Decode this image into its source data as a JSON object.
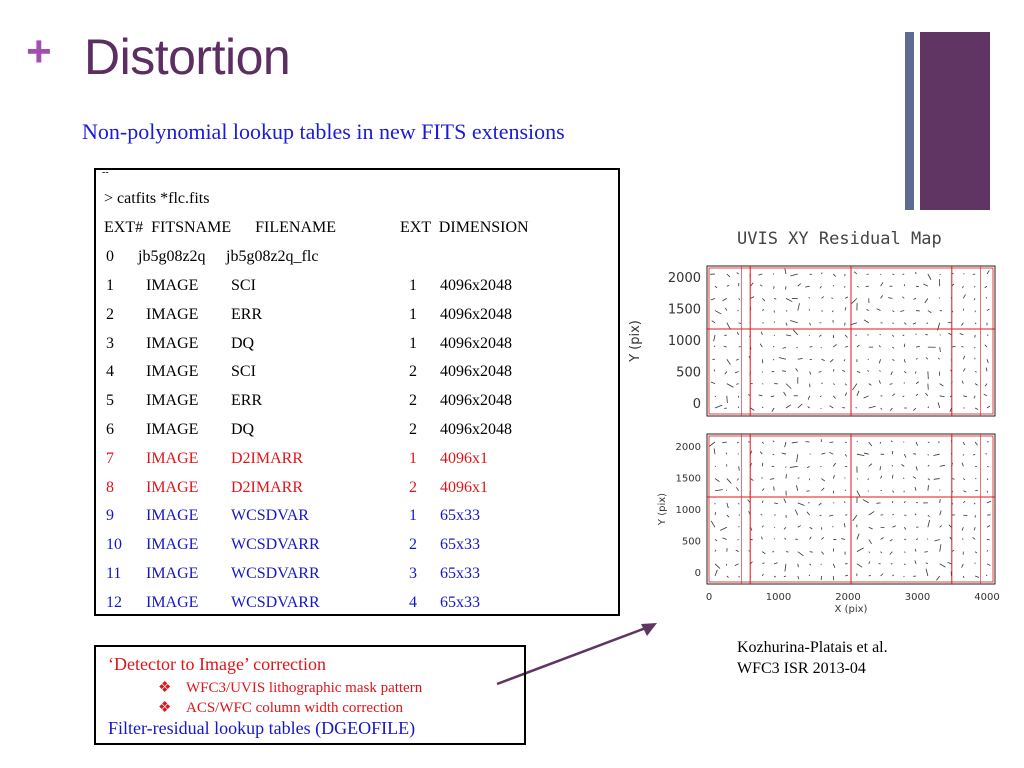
{
  "slide": {
    "plus": "+",
    "title": "Distortion",
    "subtitle": "Non-polynomial lookup tables in new FITS extensions"
  },
  "listing": {
    "tick": "--",
    "command": "> catfits *flc.fits",
    "header": "EXT#  FITSNAME      FILENAME                EXT  DIMENSION",
    "primary": {
      "num": "0",
      "fitsname": "jb5g08z2q",
      "filename": "jb5g08z2q_flc"
    },
    "rows": [
      {
        "num": "1",
        "fitsname": "IMAGE",
        "filename": "SCI",
        "ext": "1",
        "dimension": "4096x2048",
        "color": "#000000"
      },
      {
        "num": "2",
        "fitsname": "IMAGE",
        "filename": "ERR",
        "ext": "1",
        "dimension": "4096x2048",
        "color": "#000000"
      },
      {
        "num": "3",
        "fitsname": "IMAGE",
        "filename": "DQ",
        "ext": "1",
        "dimension": "4096x2048",
        "color": "#000000"
      },
      {
        "num": "4",
        "fitsname": "IMAGE",
        "filename": "SCI",
        "ext": "2",
        "dimension": "4096x2048",
        "color": "#000000"
      },
      {
        "num": "5",
        "fitsname": "IMAGE",
        "filename": "ERR",
        "ext": "2",
        "dimension": "4096x2048",
        "color": "#000000"
      },
      {
        "num": "6",
        "fitsname": "IMAGE",
        "filename": "DQ",
        "ext": "2",
        "dimension": "4096x2048",
        "color": "#000000"
      },
      {
        "num": "7",
        "fitsname": "IMAGE",
        "filename": "D2IMARR",
        "ext": "1",
        "dimension": "4096x1",
        "color": "#e0151a"
      },
      {
        "num": "8",
        "fitsname": "IMAGE",
        "filename": "D2IMARR",
        "ext": "2",
        "dimension": "4096x1",
        "color": "#e0151a"
      },
      {
        "num": "9",
        "fitsname": "IMAGE",
        "filename": "WCSDVAR",
        "ext": "1",
        "dimension": "65x33",
        "color": "#1616c9"
      },
      {
        "num": "10",
        "fitsname": "IMAGE",
        "filename": "WCSDVARR",
        "ext": "2",
        "dimension": "65x33",
        "color": "#1616c9"
      },
      {
        "num": "11",
        "fitsname": "IMAGE",
        "filename": "WCSDVARR",
        "ext": "3",
        "dimension": "65x33",
        "color": "#1616c9"
      },
      {
        "num": "12",
        "fitsname": "IMAGE",
        "filename": "WCSDVARR",
        "ext": "4",
        "dimension": "65x33",
        "color": "#1616c9"
      }
    ]
  },
  "notes": {
    "line1": "‘Detector to Image’ correction",
    "bullet_glyph": "❖",
    "bullets": [
      "WFC3/UVIS lithographic mask pattern",
      "ACS/WFC column width correction"
    ],
    "line4": "Filter-residual lookup tables  (DGEOFILE)"
  },
  "figure": {
    "title": "UVIS XY Residual Map",
    "ylabel": "Y (pix)",
    "xlabel": "X (pix)",
    "yticks": [
      "0",
      "500",
      "1000",
      "1500",
      "2000"
    ],
    "xticks": [
      "0",
      "1000",
      "2000",
      "3000",
      "4000"
    ],
    "grid_color": "#e0151a",
    "vector_color": "#333333"
  },
  "citation": {
    "line1": "Kozhurina-Platais et al.",
    "line2": "WFC3 ISR 2013-04"
  }
}
